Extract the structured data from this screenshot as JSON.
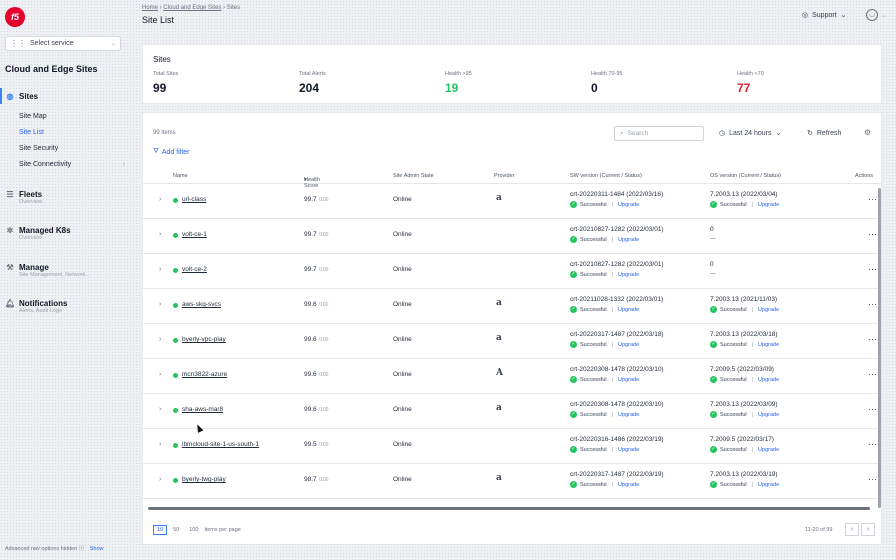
{
  "sidebar": {
    "logo_text": "f5",
    "service_select": "Select service",
    "section_title": "Cloud and Edge Sites",
    "sites": {
      "label": "Sites",
      "items": [
        {
          "label": "Site Map"
        },
        {
          "label": "Site List"
        },
        {
          "label": "Site Security"
        },
        {
          "label": "Site Connectivity"
        }
      ]
    },
    "groups": [
      {
        "label": "Fleets",
        "desc": "Overview"
      },
      {
        "label": "Managed K8s",
        "desc": "Overview"
      },
      {
        "label": "Manage",
        "desc": "Site Management, Network..."
      },
      {
        "label": "Notifications",
        "desc": "Alerts, Audit Logs"
      }
    ],
    "advanced_text": "Advanced nav options hidden",
    "advanced_show": "Show"
  },
  "header": {
    "breadcrumb": [
      "Home",
      "Cloud and Edge Sites",
      "Sites"
    ],
    "title": "Site List",
    "support": "Support"
  },
  "summary": {
    "title": "Sites",
    "stats": [
      {
        "label": "Total Sites",
        "value": "99",
        "color": "#111827"
      },
      {
        "label": "Total Alerts",
        "value": "204",
        "color": "#111827"
      },
      {
        "label": "Health >95",
        "value": "19",
        "color": "#22c55e"
      },
      {
        "label": "Health 70-95",
        "value": "0",
        "color": "#111827"
      },
      {
        "label": "Health <70",
        "value": "77",
        "color": "#dc2626"
      }
    ]
  },
  "list": {
    "count": "99 items",
    "add_filter": "Add filter",
    "search_placeholder": "Search",
    "time_range": "Last 24 hours",
    "refresh": "Refresh",
    "columns": {
      "name": "Name",
      "health": "Health Score",
      "state": "Site Admin State",
      "provider": "Provider",
      "sw": "SW version (Current / Status)",
      "os": "OS version (Current / Status)",
      "actions": "Actions"
    },
    "status_text": "Successful",
    "upgrade_text": "Upgrade",
    "health_suffix": "/100",
    "rows": [
      {
        "name": "url-class",
        "health": "99.7",
        "state": "Online",
        "provider": "a",
        "sw": "crt-20220311-1484 (2022/03/16)",
        "sw_status": true,
        "os": "7.2003.13 (2022/03/04)",
        "os_status": true
      },
      {
        "name": "volt-ce-1",
        "health": "99.7",
        "state": "Online",
        "provider": "",
        "sw": "crt-20210827-1282 (2022/03/01)",
        "sw_status": true,
        "os": "0",
        "os_status": false
      },
      {
        "name": "volt-ce-2",
        "health": "99.7",
        "state": "Online",
        "provider": "",
        "sw": "crt-20210827-1282 (2022/03/01)",
        "sw_status": true,
        "os": "0",
        "os_status": false
      },
      {
        "name": "aws-skg-svcs",
        "health": "99.6",
        "state": "Online",
        "provider": "a",
        "sw": "crt-20211028-1332 (2022/03/01)",
        "sw_status": true,
        "os": "7.2003.13 (2021/11/03)",
        "os_status": true
      },
      {
        "name": "byerly-vpc-play",
        "health": "99.6",
        "state": "Online",
        "provider": "a",
        "sw": "crt-20220317-1487 (2022/03/18)",
        "sw_status": true,
        "os": "7.2003.13 (2022/03/18)",
        "os_status": true
      },
      {
        "name": "mcn3822-azure",
        "health": "99.6",
        "state": "Online",
        "provider": "A",
        "sw": "crt-20220308-1478 (2022/03/10)",
        "sw_status": true,
        "os": "7.2009.5 (2022/03/09)",
        "os_status": true
      },
      {
        "name": "sha-aws-mar8",
        "health": "99.6",
        "state": "Online",
        "provider": "a",
        "sw": "crt-20220308-1478 (2022/03/10)",
        "sw_status": true,
        "os": "7.2003.13 (2022/03/09)",
        "os_status": true
      },
      {
        "name": "ibmcloud-site-1-us-south-1",
        "health": "99.5",
        "state": "Online",
        "provider": "",
        "sw": "crt-20220316-1486 (2022/03/19)",
        "sw_status": true,
        "os": "7.2009.5 (2022/03/17)",
        "os_status": true
      },
      {
        "name": "byerly-twg-play",
        "health": "98.7",
        "state": "Online",
        "provider": "a",
        "sw": "crt-20220317-1487 (2022/03/19)",
        "sw_status": true,
        "os": "7.2003.13 (2022/03/19)",
        "os_status": true
      }
    ]
  },
  "pagination": {
    "sizes": [
      "10",
      "50",
      "100"
    ],
    "selected_size": "10",
    "label": "items per page",
    "info": "11-20 of 99"
  }
}
